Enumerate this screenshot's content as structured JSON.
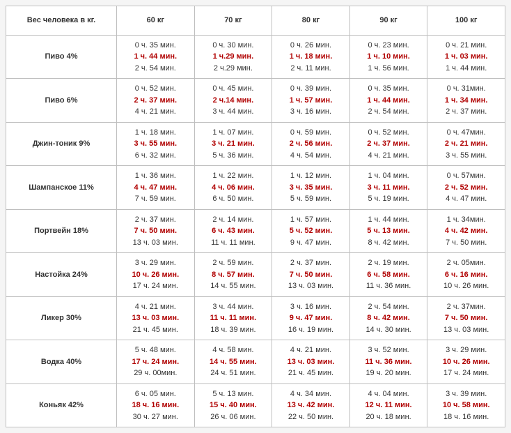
{
  "header": {
    "rowTitle": "Вес человека в кг.",
    "weights": [
      "60 кг",
      "70 кг",
      "80 кг",
      "90 кг",
      "100 кг"
    ]
  },
  "drinks": [
    "Пиво 4%",
    "Пиво 6%",
    "Джин-тоник 9%",
    "Шампанское 11%",
    "Портвейн 18%",
    "Настойка 24%",
    "Ликер 30%",
    "Водка 40%",
    "Коньяк 42%"
  ],
  "cells": [
    [
      [
        "0 ч. 35 мин.",
        "1 ч. 44 мин.",
        "2 ч. 54 мин."
      ],
      [
        "0 ч. 30 мин.",
        "1 ч.29 мин.",
        "2 ч.29 мин."
      ],
      [
        "0 ч. 26 мин.",
        "1 ч. 18 мин.",
        "2 ч. 11 мин."
      ],
      [
        "0 ч. 23 мин.",
        "1 ч. 10 мин.",
        "1 ч. 56 мин."
      ],
      [
        "0 ч. 21 мин.",
        "1 ч. 03 мин.",
        "1 ч. 44 мин."
      ]
    ],
    [
      [
        "0 ч. 52 мин.",
        "2 ч. 37 мин.",
        "4 ч. 21 мин."
      ],
      [
        "0 ч. 45 мин.",
        "2 ч.14 мин.",
        "3 ч. 44 мин."
      ],
      [
        "0 ч. 39 мин.",
        "1 ч. 57 мин.",
        "3 ч. 16 мин."
      ],
      [
        "0 ч. 35 мин.",
        "1 ч. 44 мин.",
        "2 ч. 54 мин."
      ],
      [
        "0 ч. 31мин.",
        "1 ч. 34 мин.",
        "2 ч. 37 мин."
      ]
    ],
    [
      [
        "1 ч. 18 мин.",
        "3 ч. 55 мин.",
        "6 ч. 32 мин."
      ],
      [
        "1 ч. 07 мин.",
        "3 ч. 21 мин.",
        "5 ч. 36 мин."
      ],
      [
        "0 ч. 59 мин.",
        "2 ч. 56 мин.",
        "4 ч. 54 мин."
      ],
      [
        "0 ч. 52 мин.",
        "2 ч. 37 мин.",
        "4 ч. 21 мин."
      ],
      [
        "0 ч. 47мин.",
        "2 ч. 21 мин.",
        "3 ч. 55 мин."
      ]
    ],
    [
      [
        "1 ч. 36 мин.",
        "4 ч. 47 мин.",
        "7 ч. 59 мин."
      ],
      [
        "1 ч. 22 мин.",
        "4 ч. 06 мин.",
        "6 ч. 50 мин."
      ],
      [
        "1 ч. 12 мин.",
        "3 ч. 35 мин.",
        "5 ч. 59 мин."
      ],
      [
        "1 ч. 04 мин.",
        "3 ч. 11 мин.",
        "5 ч. 19 мин."
      ],
      [
        "0 ч. 57мин.",
        "2 ч. 52 мин.",
        "4 ч. 47 мин."
      ]
    ],
    [
      [
        "2 ч. 37 мин.",
        "7 ч. 50 мин.",
        "13 ч. 03 мин."
      ],
      [
        "2 ч. 14 мин.",
        "6 ч. 43 мин.",
        "11 ч. 11 мин."
      ],
      [
        "1 ч. 57 мин.",
        "5 ч. 52 мин.",
        "9 ч. 47 мин."
      ],
      [
        "1 ч. 44 мин.",
        "5 ч. 13 мин.",
        "8 ч. 42 мин."
      ],
      [
        "1 ч. 34мин.",
        "4 ч. 42 мин.",
        "7 ч. 50 мин."
      ]
    ],
    [
      [
        "3 ч. 29 мин.",
        "10 ч. 26 мин.",
        "17 ч. 24 мин."
      ],
      [
        "2 ч. 59 мин.",
        "8 ч. 57 мин.",
        "14 ч. 55 мин."
      ],
      [
        "2 ч. 37 мин.",
        "7 ч. 50 мин.",
        "13 ч. 03 мин."
      ],
      [
        "2 ч. 19 мин.",
        "6 ч. 58 мин.",
        "11 ч. 36 мин."
      ],
      [
        "2 ч. 05мин.",
        "6 ч. 16 мин.",
        "10 ч. 26 мин."
      ]
    ],
    [
      [
        "4 ч. 21 мин.",
        "13 ч. 03 мин.",
        "21 ч. 45 мин."
      ],
      [
        "3 ч. 44 мин.",
        "11 ч. 11 мин.",
        "18 ч. 39 мин."
      ],
      [
        "3 ч. 16 мин.",
        "9 ч. 47 мин.",
        "16 ч. 19 мин."
      ],
      [
        "2 ч. 54 мин.",
        "8 ч. 42 мин.",
        "14 ч. 30 мин."
      ],
      [
        "2 ч. 37мин.",
        "7 ч. 50 мин.",
        "13 ч. 03 мин."
      ]
    ],
    [
      [
        "5 ч. 48 мин.",
        "17 ч. 24 мин.",
        "29 ч. 00мин."
      ],
      [
        "4 ч. 58 мин.",
        "14 ч. 55 мин.",
        "24 ч. 51 мин."
      ],
      [
        "4 ч. 21 мин.",
        "13 ч. 03 мин.",
        "21 ч. 45 мин."
      ],
      [
        "3 ч. 52 мин.",
        "11 ч. 36 мин.",
        "19 ч. 20 мин."
      ],
      [
        "3 ч. 29 мин.",
        "10 ч. 26 мин.",
        "17 ч. 24 мин."
      ]
    ],
    [
      [
        "6 ч. 05 мин.",
        "18 ч. 16 мин.",
        "30 ч. 27 мин."
      ],
      [
        "5 ч. 13 мин.",
        "15 ч. 40 мин.",
        "26 ч. 06 мин."
      ],
      [
        "4 ч. 34 мин.",
        "13 ч. 42 мин.",
        "22 ч. 50 мин."
      ],
      [
        "4 ч. 04 мин.",
        "12 ч. 11 мин.",
        "20 ч. 18 мин."
      ],
      [
        "3 ч. 39 мин.",
        "10 ч. 58 мин.",
        "18 ч. 16 мин."
      ]
    ]
  ]
}
